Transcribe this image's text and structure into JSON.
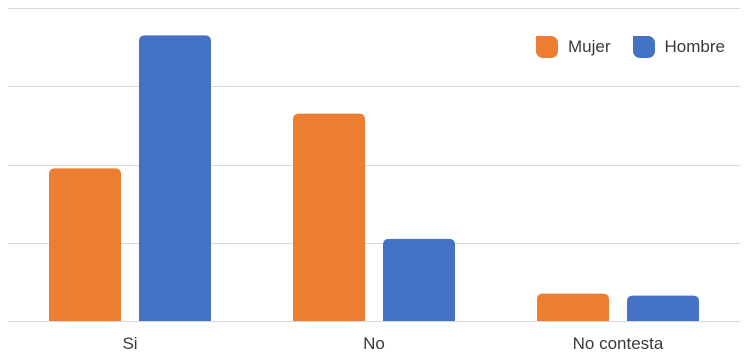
{
  "chart_data": {
    "type": "bar",
    "title": "",
    "xlabel": "",
    "ylabel": "",
    "categories": [
      "Si",
      "No",
      "No contesta"
    ],
    "series": [
      {
        "name": "Mujer",
        "values": [
          39,
          53,
          7
        ],
        "color": "#ED7D31"
      },
      {
        "name": "Hombre",
        "values": [
          73,
          21,
          6.5
        ],
        "color": "#4472C4"
      }
    ],
    "ylim": [
      0,
      80
    ],
    "gridlines": [
      0,
      20,
      40,
      60,
      80
    ],
    "grid": true,
    "legend_position": "top-right",
    "y_tick_labels_shown": false
  }
}
